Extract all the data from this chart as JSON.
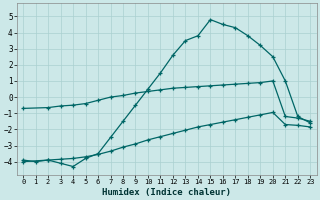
{
  "xlabel": "Humidex (Indice chaleur)",
  "xlim": [
    -0.5,
    23.5
  ],
  "ylim": [
    -4.8,
    5.8
  ],
  "yticks": [
    -4,
    -3,
    -2,
    -1,
    0,
    1,
    2,
    3,
    4,
    5
  ],
  "xticks": [
    0,
    1,
    2,
    3,
    4,
    5,
    6,
    7,
    8,
    9,
    10,
    11,
    12,
    13,
    14,
    15,
    16,
    17,
    18,
    19,
    20,
    21,
    22,
    23
  ],
  "bg_color": "#cce8e8",
  "grid_color": "#aad0d0",
  "line_color": "#006666",
  "line1_x": [
    0,
    1,
    2,
    3,
    4,
    5,
    6,
    7,
    8,
    9,
    10,
    11,
    12,
    13,
    14,
    15,
    16,
    17,
    18,
    19,
    20,
    21,
    22,
    23
  ],
  "line1_y": [
    -3.9,
    -4.0,
    -3.9,
    -4.1,
    -4.3,
    -3.8,
    -3.5,
    -2.5,
    -1.5,
    -0.5,
    0.5,
    1.5,
    2.6,
    3.5,
    3.8,
    4.8,
    4.5,
    4.3,
    3.8,
    3.2,
    2.5,
    1.0,
    -1.2,
    -1.6
  ],
  "line2_x": [
    0,
    2,
    3,
    4,
    5,
    6,
    7,
    8,
    9,
    10,
    11,
    12,
    13,
    14,
    15,
    16,
    17,
    18,
    19,
    20,
    21,
    22,
    23
  ],
  "line2_y": [
    -0.7,
    -0.65,
    -0.55,
    -0.5,
    -0.4,
    -0.2,
    0.0,
    0.1,
    0.25,
    0.35,
    0.45,
    0.55,
    0.6,
    0.65,
    0.7,
    0.75,
    0.8,
    0.85,
    0.9,
    1.0,
    -1.2,
    -1.3,
    -1.5
  ],
  "line3_x": [
    0,
    2,
    3,
    4,
    5,
    6,
    7,
    8,
    9,
    10,
    11,
    12,
    13,
    14,
    15,
    16,
    17,
    18,
    19,
    20,
    21,
    22,
    23
  ],
  "line3_y": [
    -4.0,
    -3.9,
    -3.85,
    -3.8,
    -3.7,
    -3.55,
    -3.35,
    -3.1,
    -2.9,
    -2.65,
    -2.45,
    -2.25,
    -2.05,
    -1.85,
    -1.7,
    -1.55,
    -1.4,
    -1.25,
    -1.1,
    -0.95,
    -1.7,
    -1.75,
    -1.85
  ]
}
